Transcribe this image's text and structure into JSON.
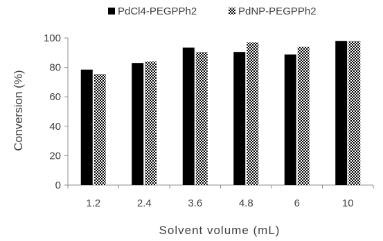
{
  "chart_data": {
    "type": "bar",
    "categories": [
      "1.2",
      "2.4",
      "3.6",
      "4.8",
      "6",
      "10"
    ],
    "series": [
      {
        "name": "PdCl4-PEGPPh2",
        "values": [
          78.5,
          83,
          93.5,
          90.5,
          88.8,
          98
        ],
        "fill": "solid",
        "color": "#000000"
      },
      {
        "name": "PdNP-PEGPPh2",
        "values": [
          75.5,
          84,
          90.5,
          97,
          94,
          98
        ],
        "fill": "checkered",
        "color": "#000000"
      }
    ],
    "xlabel": "Solvent volume (mL)",
    "ylabel": "Conversion (%)",
    "ylim": [
      0,
      100
    ],
    "yticks": [
      0,
      20,
      40,
      60,
      80,
      100
    ],
    "grid": false,
    "legend_position": "top"
  }
}
